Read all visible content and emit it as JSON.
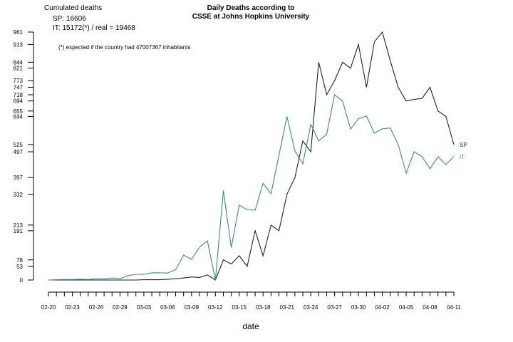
{
  "chart_data": {
    "type": "line",
    "title": "Daily Deaths according to",
    "subtitle": "CSSE at Johns Hopkins University",
    "xlabel": "date",
    "ylabel": "",
    "notes": {
      "heading": "Cumulated deaths",
      "sp": "SP: 16606",
      "it": "IT: 15172(*) / real = 19468",
      "footnote": "(*) expected if the country had 47007367 inhabitants"
    },
    "x": [
      "02-20",
      "02-21",
      "02-22",
      "02-23",
      "02-24",
      "02-25",
      "02-26",
      "02-27",
      "02-28",
      "02-29",
      "03-01",
      "03-02",
      "03-03",
      "03-04",
      "03-05",
      "03-06",
      "03-07",
      "03-08",
      "03-09",
      "03-10",
      "03-11",
      "03-12",
      "03-13",
      "03-14",
      "03-15",
      "03-16",
      "03-17",
      "03-18",
      "03-19",
      "03-20",
      "03-21",
      "03-22",
      "03-23",
      "03-24",
      "03-25",
      "03-26",
      "03-27",
      "03-28",
      "03-29",
      "03-30",
      "03-31",
      "04-01",
      "04-02",
      "04-03",
      "04-04",
      "04-05",
      "04-06",
      "04-07",
      "04-08",
      "04-09",
      "04-10",
      "04-11"
    ],
    "x_tick_labels": [
      "02-20",
      "02-23",
      "02-26",
      "02-29",
      "03-03",
      "03-06",
      "03-09",
      "03-12",
      "03-15",
      "03-18",
      "03-21",
      "03-24",
      "03-27",
      "03-30",
      "04-02",
      "04-05",
      "04-08",
      "04-11"
    ],
    "y_ticks": [
      0,
      53,
      78,
      191,
      213,
      332,
      397,
      497,
      525,
      634,
      655,
      694,
      718,
      747,
      773,
      821,
      844,
      913,
      961
    ],
    "ylim": [
      0,
      961
    ],
    "grid": false,
    "series": [
      {
        "name": "SP",
        "color": "#222222",
        "values": [
          0,
          0,
          0,
          0,
          0,
          0,
          0,
          0,
          0,
          0,
          0,
          0,
          1,
          1,
          1,
          3,
          5,
          8,
          12,
          10,
          20,
          0,
          78,
          62,
          94,
          53,
          191,
          94,
          213,
          191,
          332,
          397,
          539,
          497,
          844,
          718,
          773,
          844,
          821,
          913,
          747,
          923,
          961,
          850,
          747,
          694,
          700,
          704,
          747,
          655,
          634,
          525
        ]
      },
      {
        "name": "IT",
        "color": "#3a8a88",
        "values": [
          0,
          1,
          2,
          2,
          3,
          2,
          5,
          4,
          8,
          5,
          17,
          22,
          22,
          28,
          28,
          27,
          40,
          97,
          80,
          127,
          152,
          0,
          347,
          126,
          290,
          272,
          271,
          375,
          335,
          483,
          634,
          500,
          450,
          603,
          539,
          565,
          718,
          694,
          585,
          625,
          636,
          569,
          586,
          589,
          525,
          414,
          497,
          478,
          431,
          478,
          447,
          478
        ]
      }
    ]
  }
}
